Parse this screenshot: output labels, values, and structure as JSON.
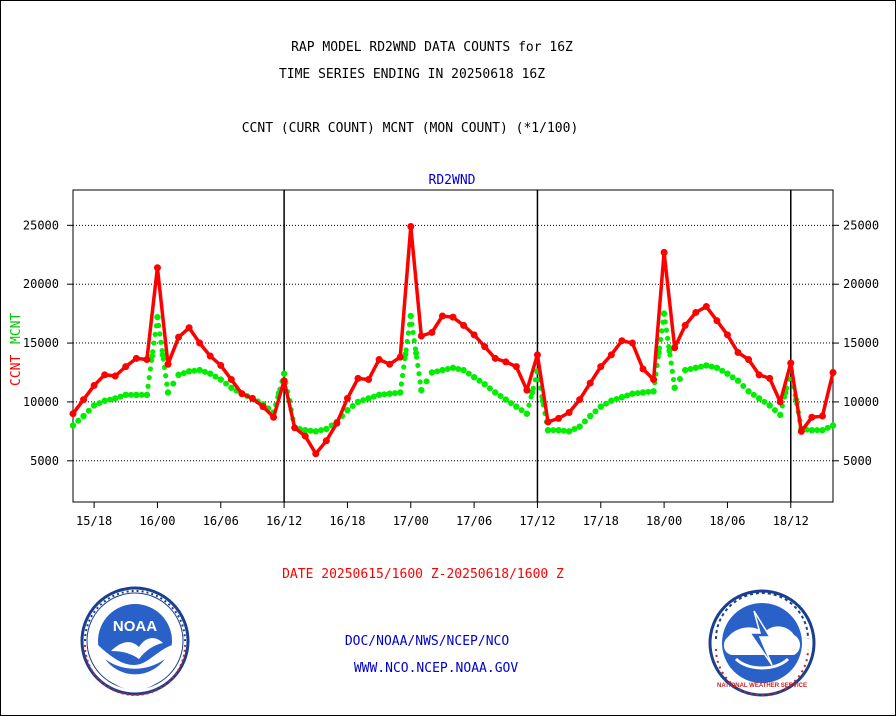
{
  "header": {
    "line1": "RAP MODEL RD2WND DATA COUNTS for 16Z",
    "line2": "TIME SERIES ENDING IN 20250618 16Z",
    "line3": "CCNT (CURR COUNT) MCNT (MON COUNT) (*1/100)"
  },
  "footer": {
    "date_range": "DATE 20250615/1600 Z-20250618/1600 Z",
    "org": "DOC/NOAA/NWS/NCEP/NCO",
    "url": "WWW.NCO.NCEP.NOAA.GOV"
  },
  "logos": {
    "noaa": {
      "label": "NOAA"
    },
    "nws": {
      "label": "NATIONAL WEATHER SERVICE"
    }
  },
  "colors": {
    "ccnt": "#ff0000",
    "mcnt": "#00ee00",
    "title_blue": "#0000cc",
    "date_red": "#ff0000"
  },
  "chart_data": {
    "type": "line",
    "title": "RD2WND",
    "ylabel_ccnt": "CCNT",
    "ylabel_mcnt": "MCNT",
    "xlabel": "DATE 20250615/1600 Z-20250618/1600 Z",
    "x_unit": "hours since 2025-06-15 16Z",
    "xlim": [
      0,
      72
    ],
    "ylim": [
      1500,
      28000
    ],
    "yticks": [
      5000,
      10000,
      15000,
      20000,
      25000
    ],
    "ytick_labels": [
      "5000",
      "10000",
      "15000",
      "20000",
      "25000"
    ],
    "xticks": [
      {
        "x": 2,
        "label": "15/18"
      },
      {
        "x": 8,
        "label": "16/00"
      },
      {
        "x": 14,
        "label": "16/06"
      },
      {
        "x": 20,
        "label": "16/12"
      },
      {
        "x": 26,
        "label": "16/18"
      },
      {
        "x": 32,
        "label": "17/00"
      },
      {
        "x": 38,
        "label": "17/06"
      },
      {
        "x": 44,
        "label": "17/12"
      },
      {
        "x": 50,
        "label": "17/18"
      },
      {
        "x": 56,
        "label": "18/00"
      },
      {
        "x": 62,
        "label": "18/06"
      },
      {
        "x": 68,
        "label": "18/12"
      }
    ],
    "vlines": [
      20,
      44,
      68
    ],
    "grid": "horizontal-dotted",
    "series": [
      {
        "name": "CCNT",
        "color": "#ff0000",
        "style": "solid",
        "x": [
          0,
          1,
          2,
          3,
          4,
          5,
          6,
          7,
          8,
          9,
          10,
          11,
          12,
          13,
          14,
          15,
          16,
          17,
          18,
          19,
          20,
          21,
          22,
          23,
          24,
          25,
          26,
          27,
          28,
          29,
          30,
          31,
          32,
          33,
          34,
          35,
          36,
          37,
          38,
          39,
          40,
          41,
          42,
          43,
          44,
          45,
          46,
          47,
          48,
          49,
          50,
          51,
          52,
          53,
          54,
          55,
          56,
          57,
          58,
          59,
          60,
          61,
          62,
          63,
          64,
          65,
          66,
          67,
          68,
          69,
          70,
          71,
          72
        ],
        "values": [
          9000,
          10200,
          11400,
          12300,
          12200,
          13000,
          13700,
          13600,
          21400,
          13200,
          15500,
          16300,
          15000,
          13900,
          13100,
          11900,
          10700,
          10300,
          9600,
          8700,
          11800,
          7800,
          7100,
          5600,
          6700,
          8200,
          10300,
          12000,
          11900,
          13600,
          13200,
          13800,
          24900,
          15600,
          15900,
          17300,
          17200,
          16500,
          15700,
          14700,
          13700,
          13400,
          13000,
          11000,
          14000,
          8300,
          8600,
          9100,
          10200,
          11600,
          13000,
          14000,
          15200,
          15000,
          12800,
          11900,
          22700,
          14600,
          16500,
          17600,
          18100,
          16900,
          15700,
          14200,
          13600,
          12300,
          12000,
          10000,
          13300,
          7500,
          8700,
          8800,
          12500
        ]
      },
      {
        "name": "MCNT",
        "color": "#00ee00",
        "style": "dotted",
        "x": [
          0,
          1,
          2,
          3,
          4,
          5,
          6,
          7,
          8,
          9,
          10,
          11,
          12,
          13,
          14,
          15,
          16,
          17,
          18,
          19,
          20,
          21,
          22,
          23,
          24,
          25,
          26,
          27,
          28,
          29,
          30,
          31,
          32,
          33,
          34,
          35,
          36,
          37,
          38,
          39,
          40,
          41,
          42,
          43,
          44,
          45,
          46,
          47,
          48,
          49,
          50,
          51,
          52,
          53,
          54,
          55,
          56,
          57,
          58,
          59,
          60,
          61,
          62,
          63,
          64,
          65,
          66,
          67,
          68,
          69,
          70,
          71,
          72
        ],
        "values": [
          8000,
          8800,
          9700,
          10100,
          10300,
          10600,
          10600,
          10600,
          17200,
          10800,
          12300,
          12600,
          12700,
          12400,
          11900,
          11200,
          10700,
          10300,
          9800,
          9100,
          12400,
          7800,
          7600,
          7500,
          7700,
          8300,
          9300,
          10000,
          10300,
          10600,
          10700,
          10800,
          17300,
          11000,
          12500,
          12700,
          12900,
          12700,
          12100,
          11500,
          10800,
          10200,
          9600,
          9000,
          12600,
          7600,
          7600,
          7500,
          7900,
          8800,
          9600,
          10100,
          10400,
          10700,
          10800,
          10900,
          17500,
          11200,
          12700,
          12900,
          13100,
          12900,
          12400,
          11800,
          10900,
          10300,
          9700,
          8900,
          12700,
          7700,
          7600,
          7600,
          8000
        ]
      }
    ]
  }
}
